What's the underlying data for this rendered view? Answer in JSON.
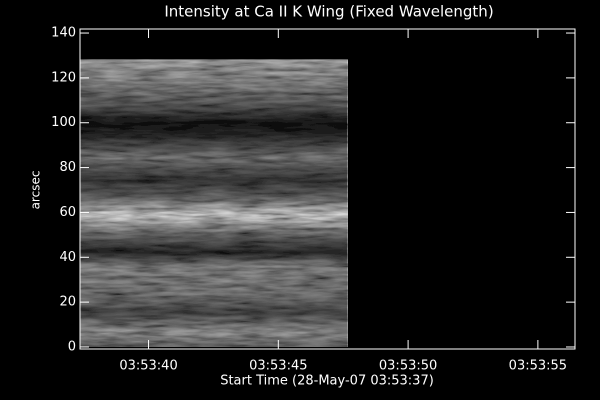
{
  "chart_data": {
    "type": "image",
    "title": "Intensity at Ca II K Wing (Fixed Wavelength)",
    "x_label": "Start Time (28-May-07 03:53:37)",
    "y_label": "arcsec",
    "xlim": [
      0.36,
      19.43
    ],
    "ylim": [
      -0.9,
      141.8
    ],
    "xticks": [
      {
        "value": 3,
        "label": "03:53:40"
      },
      {
        "value": 8,
        "label": "03:53:45"
      },
      {
        "value": 13,
        "label": "03:53:50"
      },
      {
        "value": 18,
        "label": "03:53:55"
      }
    ],
    "yticks": [
      0,
      20,
      40,
      60,
      80,
      100,
      120,
      140
    ],
    "image": {
      "x": [
        0.36,
        10.67
      ],
      "y": [
        0,
        128
      ]
    },
    "colormap": "gray"
  }
}
